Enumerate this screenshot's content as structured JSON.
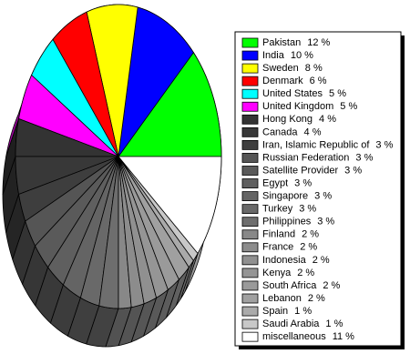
{
  "chart_data": {
    "type": "pie",
    "categories": [
      "Pakistan",
      "India",
      "Sweden",
      "Denmark",
      "United States",
      "United Kingdom",
      "Hong Kong",
      "Canada",
      "Iran, Islamic Republic of",
      "Russian Federation",
      "Satellite Provider",
      "Egypt",
      "Singapore",
      "Turkey",
      "Philippines",
      "Finland",
      "France",
      "Indonesia",
      "Kenya",
      "South Africa",
      "Lebanon",
      "Spain",
      "Saudi Arabia",
      "miscellaneous"
    ],
    "values": [
      12,
      10,
      8,
      6,
      5,
      5,
      4,
      4,
      3,
      3,
      3,
      3,
      3,
      3,
      3,
      2,
      2,
      2,
      2,
      2,
      2,
      1,
      1,
      11
    ],
    "value_labels": [
      "12 %",
      "10 %",
      "8 %",
      "6 %",
      "5 %",
      "5 %",
      "4 %",
      "4 %",
      "3 %",
      "3 %",
      "3 %",
      "3 %",
      "3 %",
      "3 %",
      "3 %",
      "2 %",
      "2 %",
      "2 %",
      "2 %",
      "2 %",
      "2 %",
      "1 %",
      "1 %",
      "11 %"
    ],
    "colors": [
      "#00ff00",
      "#0000ff",
      "#ffff00",
      "#ff0000",
      "#00ffff",
      "#ff00ff",
      "#333333",
      "#383838",
      "#3e3e3e",
      "#555555",
      "#5a5a5a",
      "#5f5f5f",
      "#646464",
      "#696969",
      "#6e6e6e",
      "#888888",
      "#8c8c8c",
      "#909090",
      "#959595",
      "#9a9a9a",
      "#a0a0a0",
      "#aaaaaa",
      "#c8c8c8",
      "#ffffff"
    ]
  }
}
